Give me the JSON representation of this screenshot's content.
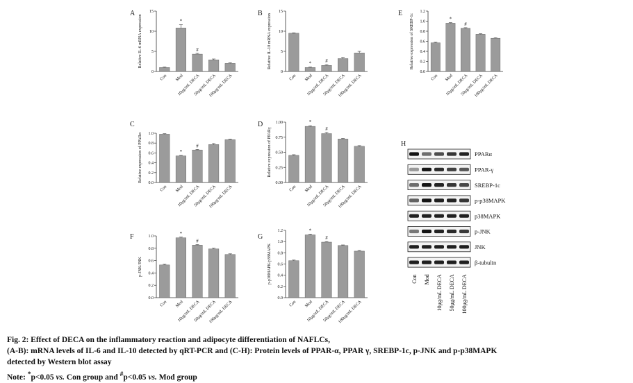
{
  "charts": [
    {
      "id": "A",
      "panel_label": "A",
      "type": "bar",
      "ylabel": "Relative IL-6 mRNA expression",
      "categories": [
        "Con",
        "Mod",
        "10μg/mL DECA",
        "50μg/mL DECA",
        "100μg/mL DECA"
      ],
      "values": [
        1.0,
        10.8,
        4.3,
        2.9,
        2.0
      ],
      "errors": [
        0.1,
        0.8,
        0.2,
        0.2,
        0.15
      ],
      "marks": [
        "",
        "*",
        "#",
        "",
        ""
      ],
      "ylim": [
        0,
        15
      ],
      "yticks": [
        "0",
        "5",
        "10",
        "15"
      ]
    },
    {
      "id": "B",
      "panel_label": "B",
      "type": "bar",
      "ylabel": "Relative IL-10 mRNA expression",
      "categories": [
        "Con",
        "Mod",
        "10μg/mL DECA",
        "50μg/mL DECA",
        "100μg/mL DECA"
      ],
      "values": [
        9.5,
        1.0,
        1.5,
        3.2,
        4.6
      ],
      "errors": [
        0.1,
        0.1,
        0.2,
        0.3,
        0.4
      ],
      "marks": [
        "",
        "*",
        "#",
        "",
        ""
      ],
      "ylim": [
        0,
        15
      ],
      "yticks": [
        "0",
        "5",
        "10",
        "15"
      ]
    },
    {
      "id": "E",
      "panel_label": "E",
      "type": "bar",
      "ylabel": "Relative expression of SREBP-1c",
      "categories": [
        "Con",
        "Mod",
        "10μg/mL DECA",
        "50μg/mL DECA",
        "100μg/mL DECA"
      ],
      "values": [
        0.57,
        0.96,
        0.86,
        0.74,
        0.66
      ],
      "errors": [
        0.01,
        0.01,
        0.01,
        0.01,
        0.01
      ],
      "marks": [
        "",
        "*",
        "#",
        "",
        ""
      ],
      "ylim": [
        0,
        1.2
      ],
      "yticks": [
        "0.0",
        "0.2",
        "0.4",
        "0.6",
        "0.8",
        "1.0",
        "1.2"
      ]
    },
    {
      "id": "C",
      "panel_label": "C",
      "type": "bar",
      "ylabel": "Relative expression of PPARα",
      "categories": [
        "Con",
        "Mod",
        "10μg/mL DECA",
        "50μg/mL DECA",
        "100μg/mL DECA"
      ],
      "values": [
        0.98,
        0.54,
        0.66,
        0.77,
        0.87
      ],
      "errors": [
        0.01,
        0.01,
        0.01,
        0.02,
        0.01
      ],
      "marks": [
        "",
        "*",
        "#",
        "",
        ""
      ],
      "ylim": [
        0,
        1.0
      ],
      "yticks": [
        "0.0",
        "0.2",
        "0.4",
        "0.6",
        "0.8",
        "1.0"
      ]
    },
    {
      "id": "D",
      "panel_label": "D",
      "type": "bar",
      "ylabel": "Relative expression of PPARγ",
      "categories": [
        "Con",
        "Mod",
        "10μg/mL DECA",
        "50μg/mL DECA",
        "100μg/mL DECA"
      ],
      "values": [
        0.45,
        0.93,
        0.81,
        0.72,
        0.6
      ],
      "errors": [
        0.01,
        0.01,
        0.02,
        0.01,
        0.01
      ],
      "marks": [
        "",
        "*",
        "#",
        "",
        ""
      ],
      "ylim": [
        0,
        1.0
      ],
      "yticks": [
        "0.00",
        "0.25",
        "0.50",
        "0.75",
        "1.00"
      ]
    },
    {
      "id": "F",
      "panel_label": "F",
      "type": "bar",
      "ylabel": "p-JNK/JNK",
      "categories": [
        "Con",
        "Mod",
        "10μg/mL DECA",
        "50μg/mL DECA",
        "100μg/mL DECA"
      ],
      "values": [
        0.53,
        0.97,
        0.85,
        0.79,
        0.7
      ],
      "errors": [
        0.01,
        0.01,
        0.01,
        0.01,
        0.01
      ],
      "marks": [
        "",
        "*",
        "#",
        "",
        ""
      ],
      "ylim": [
        0,
        1.0
      ],
      "yticks": [
        "0.0",
        "0.2",
        "0.4",
        "0.6",
        "0.8",
        "1.0"
      ]
    },
    {
      "id": "G",
      "panel_label": "G",
      "type": "bar",
      "ylabel": "p-p38MAPK/p38MAPK",
      "categories": [
        "Con",
        "Mod",
        "10μg/mL DECA",
        "50μg/mL DECA",
        "100μg/mL DECA"
      ],
      "values": [
        0.66,
        1.12,
        0.99,
        0.93,
        0.83
      ],
      "errors": [
        0.01,
        0.01,
        0.01,
        0.01,
        0.01
      ],
      "marks": [
        "",
        "*",
        "#",
        "",
        ""
      ],
      "ylim": [
        0,
        1.2
      ],
      "yticks": [
        "0.0",
        "0.2",
        "0.4",
        "0.6",
        "0.8",
        "1.0",
        "1.2"
      ]
    }
  ],
  "blot": {
    "panel_label": "H",
    "proteins": [
      "PPARα",
      "PPAR-γ",
      "SREBP-1c",
      "p-p38MAPK",
      "p38MAPK",
      "p-JNK",
      "JNK",
      "β-tubulin"
    ],
    "lanes": [
      "Con",
      "Mod",
      "10μg/mL DECA",
      "50μg/mL DECA",
      "100μg/mL DECA"
    ],
    "band_intensity": [
      [
        0.95,
        0.55,
        0.7,
        0.8,
        0.9
      ],
      [
        0.35,
        0.95,
        0.85,
        0.75,
        0.65
      ],
      [
        0.55,
        0.95,
        0.88,
        0.8,
        0.72
      ],
      [
        0.6,
        0.95,
        0.9,
        0.88,
        0.8
      ],
      [
        0.9,
        0.9,
        0.9,
        0.9,
        0.9
      ],
      [
        0.5,
        0.95,
        0.88,
        0.85,
        0.78
      ],
      [
        0.9,
        0.9,
        0.9,
        0.9,
        0.9
      ],
      [
        0.9,
        0.9,
        0.9,
        0.9,
        0.9
      ]
    ]
  },
  "caption": {
    "line1": "Fig. 2: Effect of DECA on the inflammatory reaction and adipocyte differentiation of NAFLCs,",
    "line2": "(A-B): mRNA levels of IL-6 and IL-10 detected by qRT-PCR and (C-H): Protein levels of PPAR-α, PPAR γ, SREBP-1c, p-JNK and p-p38MAPK",
    "line3": "detected by Western blot assay",
    "note_prefix": "Note: ",
    "note_star": "*",
    "note_a": "p<0.05 ",
    "note_vs1": "vs.",
    "note_b": " Con group and ",
    "note_hash": "#",
    "note_c": "p<0.05 ",
    "note_vs2": "vs.",
    "note_d": " Mod group"
  }
}
